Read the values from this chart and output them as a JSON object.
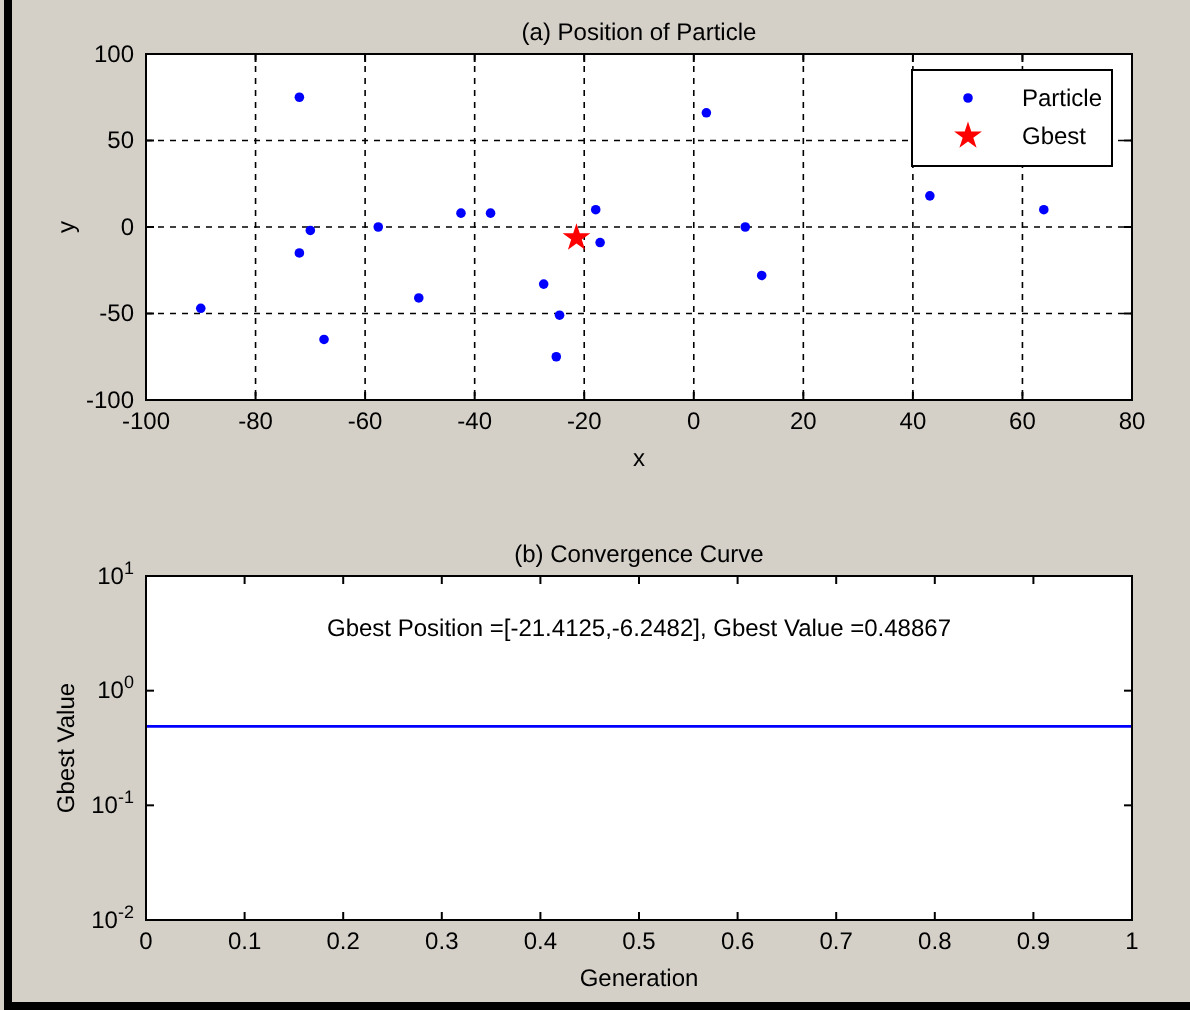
{
  "chart_data": [
    {
      "type": "scatter",
      "title": "(a) Position of Particle",
      "xlabel": "x",
      "ylabel": "y",
      "xlim": [
        -100,
        80
      ],
      "ylim": [
        -100,
        100
      ],
      "xticks": [
        -100,
        -80,
        -60,
        -40,
        -20,
        0,
        20,
        40,
        60,
        80
      ],
      "yticks": [
        -100,
        -50,
        0,
        50,
        100
      ],
      "grid": true,
      "legend": "top right",
      "series": [
        {
          "name": "Particle",
          "color": "#0000ff",
          "marker": "circle",
          "x": [
            -72,
            -70,
            -72,
            -90,
            -67.5,
            -57.6,
            -50.2,
            -42.5,
            -37.1,
            -27.4,
            -24.5,
            -25.1,
            -17.9,
            -17.1,
            2.3,
            9.4,
            12.4,
            43.1,
            63.9
          ],
          "values": [
            75,
            -2,
            -15,
            -47,
            -65,
            0,
            -41,
            8,
            8,
            -33,
            -51,
            -75,
            10,
            -9,
            66,
            0,
            -28,
            18,
            10
          ]
        },
        {
          "name": "Gbest",
          "color": "#ff0000",
          "marker": "star",
          "x": [
            -21.4125
          ],
          "values": [
            -6.2482
          ]
        }
      ]
    },
    {
      "type": "line",
      "title": "(b) Convergence Curve",
      "xlabel": "Generation",
      "ylabel": "Gbest Value",
      "xlim": [
        0,
        1
      ],
      "ylim": [
        0.01,
        10
      ],
      "log": true,
      "xticks": [
        0,
        0.1,
        0.2,
        0.3,
        0.4,
        0.5,
        0.6,
        0.7,
        0.8,
        0.9,
        1
      ],
      "yticks": [
        {
          "value": 0.01,
          "label": "10$^{-2}$"
        },
        {
          "value": 0.1,
          "label": "10$^{-1}$"
        },
        {
          "value": 1,
          "label": "10$^{0}$"
        },
        {
          "value": 10,
          "label": "10$^{1}$"
        }
      ],
      "annotations": [
        "Gbest Position =[-21.4125,-6.2482], Gbest Value =0.48867"
      ],
      "series": [
        {
          "color": "#0000ff",
          "x": [
            0,
            1
          ],
          "values": [
            0.48867,
            0.48867
          ]
        }
      ]
    }
  ]
}
